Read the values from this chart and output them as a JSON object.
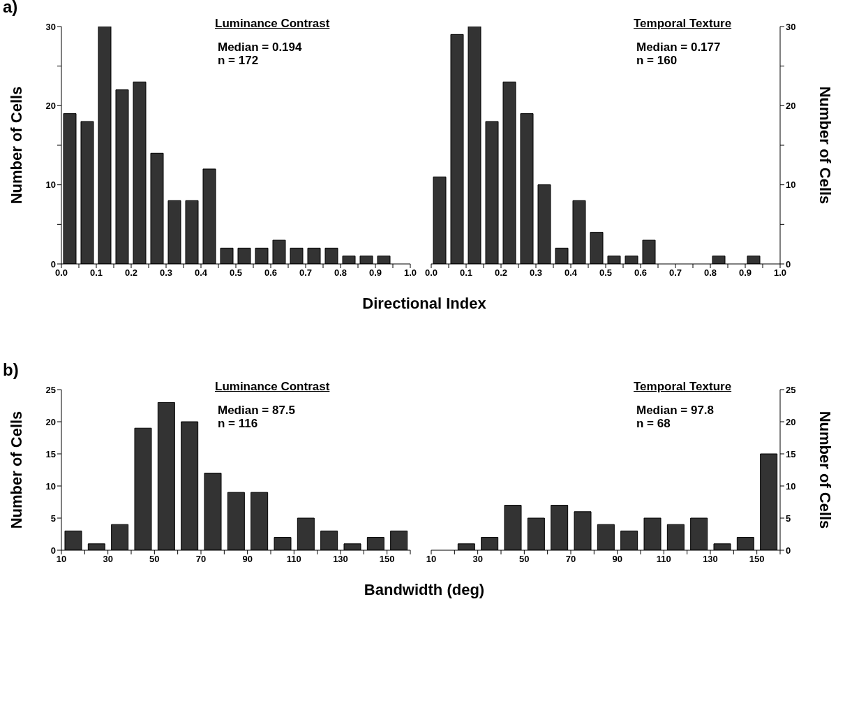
{
  "chart_data": [
    {
      "type": "histogram",
      "title": "Luminance Contrast",
      "annotations": [
        "a)",
        "Median = 0.194",
        "n = 172"
      ],
      "xlabel": "Directional Index",
      "ylabel": "Number of Cells",
      "bins": [
        0,
        0.05,
        0.1,
        0.15,
        0.2,
        0.25,
        0.3,
        0.35,
        0.4,
        0.45,
        0.5,
        0.55,
        0.6,
        0.65,
        0.7,
        0.75,
        0.8,
        0.85,
        0.9,
        0.95,
        1
      ],
      "values": [
        19,
        18,
        30,
        22,
        23,
        14,
        8,
        8,
        12,
        2,
        2,
        2,
        3,
        2,
        2,
        2,
        1,
        1,
        1,
        0
      ],
      "color": "#333333",
      "xlim": [
        0,
        1
      ],
      "xticks": [
        {
          "value": 0,
          "label": "0.0"
        },
        {
          "value": 0.05,
          "label": null
        },
        {
          "value": 0.1,
          "label": "0.1"
        },
        {
          "value": 0.15,
          "label": null
        },
        {
          "value": 0.2,
          "label": "0.2"
        },
        {
          "value": 0.25,
          "label": null
        },
        {
          "value": 0.3,
          "label": "0.3"
        },
        {
          "value": 0.35,
          "label": null
        },
        {
          "value": 0.4,
          "label": "0.4"
        },
        {
          "value": 0.45,
          "label": null
        },
        {
          "value": 0.5,
          "label": "0.5"
        },
        {
          "value": 0.55,
          "label": null
        },
        {
          "value": 0.6,
          "label": "0.6"
        },
        {
          "value": 0.65,
          "label": null
        },
        {
          "value": 0.7,
          "label": "0.7"
        },
        {
          "value": 0.75,
          "label": null
        },
        {
          "value": 0.8,
          "label": "0.8"
        },
        {
          "value": 0.85,
          "label": null
        },
        {
          "value": 0.9,
          "label": "0.9"
        },
        {
          "value": 0.95,
          "label": null
        },
        {
          "value": 1,
          "label": "1.0"
        }
      ],
      "ylim": [
        0,
        30
      ],
      "yticks": [
        0,
        {
          "value": 5,
          "label": null
        },
        10,
        {
          "value": 15,
          "label": null
        },
        20,
        {
          "value": 25,
          "label": null
        },
        30
      ]
    },
    {
      "type": "histogram",
      "title": "Temporal Texture",
      "annotations": [
        "Median = 0.177",
        "n = 160"
      ],
      "y2label": "Number of Cells",
      "bins": [
        0,
        0.05,
        0.1,
        0.15,
        0.2,
        0.25,
        0.3,
        0.35,
        0.4,
        0.45,
        0.5,
        0.55,
        0.6,
        0.65,
        0.7,
        0.75,
        0.8,
        0.85,
        0.9,
        0.95,
        1
      ],
      "series": [
        {
          "axis": "y2",
          "color": "#333333",
          "values": [
            11,
            29,
            30,
            18,
            23,
            19,
            10,
            2,
            8,
            4,
            1,
            1,
            3,
            0,
            0,
            0,
            1,
            0,
            1,
            0
          ]
        }
      ],
      "xlim": [
        0,
        1
      ],
      "xticks": [
        {
          "value": 0,
          "label": "0.0"
        },
        {
          "value": 0.05,
          "label": null
        },
        {
          "value": 0.1,
          "label": "0.1"
        },
        {
          "value": 0.15,
          "label": null
        },
        {
          "value": 0.2,
          "label": "0.2"
        },
        {
          "value": 0.25,
          "label": null
        },
        {
          "value": 0.3,
          "label": "0.3"
        },
        {
          "value": 0.35,
          "label": null
        },
        {
          "value": 0.4,
          "label": "0.4"
        },
        {
          "value": 0.45,
          "label": null
        },
        {
          "value": 0.5,
          "label": "0.5"
        },
        {
          "value": 0.55,
          "label": null
        },
        {
          "value": 0.6,
          "label": "0.6"
        },
        {
          "value": 0.65,
          "label": null
        },
        {
          "value": 0.7,
          "label": "0.7"
        },
        {
          "value": 0.75,
          "label": null
        },
        {
          "value": 0.8,
          "label": "0.8"
        },
        {
          "value": 0.85,
          "label": null
        },
        {
          "value": 0.9,
          "label": "0.9"
        },
        {
          "value": 0.95,
          "label": null
        },
        {
          "value": 1,
          "label": "1.0"
        }
      ],
      "y2lim": [
        0,
        30
      ],
      "y2ticks": [
        0,
        {
          "value": 5,
          "label": null
        },
        10,
        {
          "value": 15,
          "label": null
        },
        20,
        {
          "value": 25,
          "label": null
        },
        30
      ]
    },
    {
      "type": "histogram",
      "title": "Luminance Contrast",
      "annotations": [
        "b)",
        "Median = 87.5",
        "n = 116"
      ],
      "xlabel": "Bandwidth (deg)",
      "ylabel": "Number of Cells",
      "bins": [
        10,
        20,
        30,
        40,
        50,
        60,
        70,
        80,
        90,
        100,
        110,
        120,
        130,
        140,
        150,
        160
      ],
      "values": [
        3,
        1,
        4,
        19,
        23,
        20,
        12,
        9,
        9,
        2,
        5,
        3,
        1,
        2,
        3
      ],
      "color": "#333333",
      "xlim": [
        10,
        160
      ],
      "xticks": [
        10,
        {
          "value": 20,
          "label": null
        },
        30,
        {
          "value": 40,
          "label": null
        },
        50,
        {
          "value": 60,
          "label": null
        },
        70,
        {
          "value": 80,
          "label": null
        },
        90,
        {
          "value": 100,
          "label": null
        },
        110,
        {
          "value": 120,
          "label": null
        },
        130,
        {
          "value": 140,
          "label": null
        },
        150,
        {
          "value": 160,
          "label": null
        }
      ],
      "ylim": [
        0,
        25
      ],
      "yticks": [
        0,
        5,
        10,
        15,
        20,
        25
      ]
    },
    {
      "type": "histogram",
      "title": "Temporal Texture",
      "annotations": [
        "Median = 97.8",
        "n = 68"
      ],
      "y2label": "Number of Cells",
      "bins": [
        10,
        20,
        30,
        40,
        50,
        60,
        70,
        80,
        90,
        100,
        110,
        120,
        130,
        140,
        150,
        160
      ],
      "series": [
        {
          "axis": "y2",
          "color": "#333333",
          "values": [
            0,
            1,
            2,
            7,
            5,
            7,
            6,
            4,
            3,
            5,
            4,
            5,
            1,
            2,
            15
          ]
        }
      ],
      "xlim": [
        10,
        160
      ],
      "xticks": [
        10,
        {
          "value": 20,
          "label": null
        },
        30,
        {
          "value": 40,
          "label": null
        },
        50,
        {
          "value": 60,
          "label": null
        },
        70,
        {
          "value": 80,
          "label": null
        },
        90,
        {
          "value": 100,
          "label": null
        },
        110,
        {
          "value": 120,
          "label": null
        },
        130,
        {
          "value": 140,
          "label": null
        },
        150,
        {
          "value": 160,
          "label": null
        }
      ],
      "y2lim": [
        0,
        25
      ],
      "y2ticks": [
        0,
        5,
        10,
        15,
        20,
        25
      ]
    }
  ]
}
